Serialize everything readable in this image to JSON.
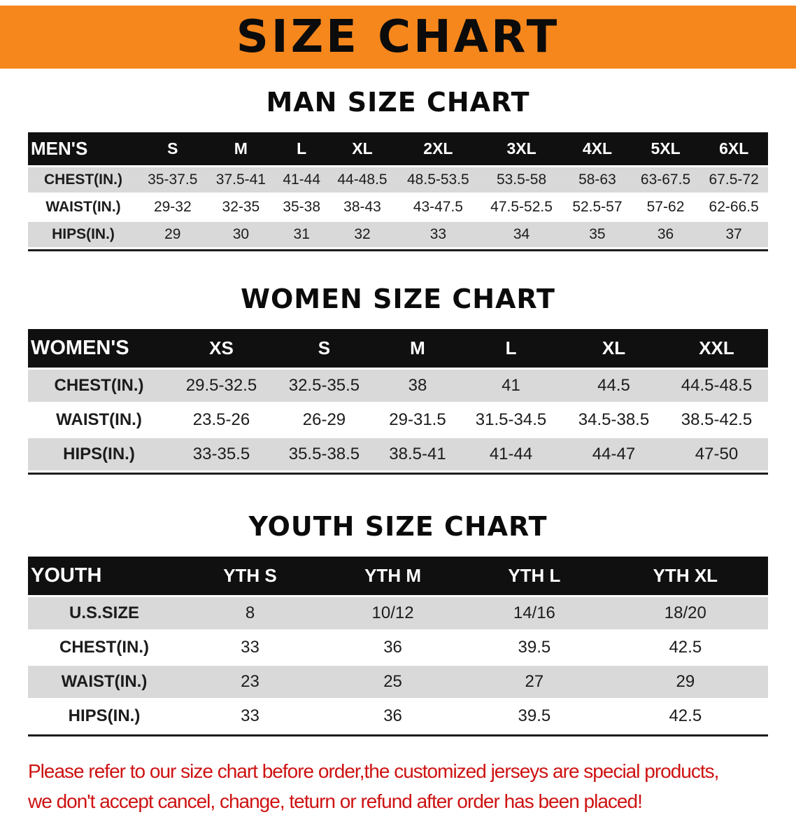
{
  "banner": {
    "title": "SIZE CHART"
  },
  "colors": {
    "banner_orange": "#F6871D",
    "table_header_black": "#101010",
    "row_stripe_gray": "#D9D9D9",
    "note_red": "#CE1212"
  },
  "sections": [
    {
      "heading": "MAN SIZE CHART",
      "table": {
        "header": [
          "MEN'S",
          "S",
          "M",
          "L",
          "XL",
          "2XL",
          "3XL",
          "4XL",
          "5XL",
          "6XL"
        ],
        "rows": [
          [
            "CHEST(IN.)",
            "35-37.5",
            "37.5-41",
            "41-44",
            "44-48.5",
            "48.5-53.5",
            "53.5-58",
            "58-63",
            "63-67.5",
            "67.5-72"
          ],
          [
            "WAIST(IN.)",
            "29-32",
            "32-35",
            "35-38",
            "38-43",
            "43-47.5",
            "47.5-52.5",
            "52.5-57",
            "57-62",
            "62-66.5"
          ],
          [
            "HIPS(IN.)",
            "29",
            "30",
            "31",
            "32",
            "33",
            "34",
            "35",
            "36",
            "37"
          ]
        ]
      }
    },
    {
      "heading": "WOMEN SIZE CHART",
      "table": {
        "header": [
          "WOMEN'S",
          "XS",
          "S",
          "M",
          "L",
          "XL",
          "XXL"
        ],
        "rows": [
          [
            "CHEST(IN.)",
            "29.5-32.5",
            "32.5-35.5",
            "38",
            "41",
            "44.5",
            "44.5-48.5"
          ],
          [
            "WAIST(IN.)",
            "23.5-26",
            "26-29",
            "29-31.5",
            "31.5-34.5",
            "34.5-38.5",
            "38.5-42.5"
          ],
          [
            "HIPS(IN.)",
            "33-35.5",
            "35.5-38.5",
            "38.5-41",
            "41-44",
            "44-47",
            "47-50"
          ]
        ]
      }
    },
    {
      "heading": "YOUTH SIZE CHART",
      "table": {
        "header": [
          "YOUTH",
          "YTH S",
          "YTH M",
          "YTH L",
          "YTH XL"
        ],
        "rows": [
          [
            "U.S.SIZE",
            "8",
            "10/12",
            "14/16",
            "18/20"
          ],
          [
            "CHEST(IN.)",
            "33",
            "36",
            "39.5",
            "42.5"
          ],
          [
            "WAIST(IN.)",
            "23",
            "25",
            "27",
            "29"
          ],
          [
            "HIPS(IN.)",
            "33",
            "36",
            "39.5",
            "42.5"
          ]
        ]
      }
    }
  ],
  "note": {
    "line1": "Please refer to our size chart before order,the customized jerseys are special products,",
    "line2": "we don't accept cancel, change, teturn or refund after order has been placed!"
  }
}
